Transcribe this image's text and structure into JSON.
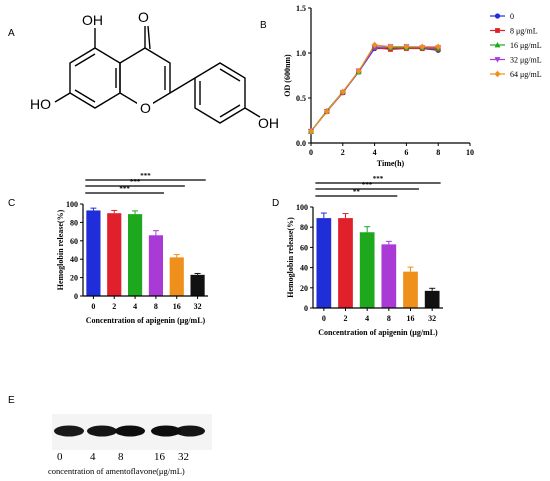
{
  "panel_labels": [
    "A",
    "B",
    "C",
    "D",
    "E"
  ],
  "molecule": {
    "atom_labels": [
      "OH",
      "O",
      "HO",
      "O",
      "OH"
    ]
  },
  "chart_data": [
    {
      "panel": "B",
      "type": "line",
      "xlabel": "Time(h)",
      "ylabel": "OD (600nm)",
      "xlim": [
        0,
        10
      ],
      "ylim": [
        0,
        1.5
      ],
      "xticks": [
        "0",
        "2",
        "4",
        "6",
        "8",
        "10"
      ],
      "yticks": [
        "0.0",
        "0.5",
        "1.0",
        "1.5"
      ],
      "x": [
        0,
        1,
        2,
        3,
        4,
        5,
        6,
        7,
        8
      ],
      "legend_position": "right",
      "series": [
        {
          "name": "0",
          "color": "#1f2ed8",
          "marker": "circle",
          "values": [
            0.13,
            0.35,
            0.56,
            0.79,
            1.05,
            1.05,
            1.06,
            1.05,
            1.03
          ]
        },
        {
          "name": "8 μg/mL",
          "color": "#e0202a",
          "marker": "square",
          "values": [
            0.13,
            0.35,
            0.56,
            0.8,
            1.06,
            1.04,
            1.05,
            1.05,
            1.04
          ]
        },
        {
          "name": "16 μg/mL",
          "color": "#1ea81e",
          "marker": "triangle-up",
          "values": [
            0.13,
            0.36,
            0.57,
            0.79,
            1.07,
            1.06,
            1.06,
            1.06,
            1.05
          ]
        },
        {
          "name": "32 μg/mL",
          "color": "#a93ad6",
          "marker": "triangle-down",
          "values": [
            0.13,
            0.35,
            0.56,
            0.8,
            1.06,
            1.07,
            1.07,
            1.06,
            1.06
          ]
        },
        {
          "name": "64 μg/mL",
          "color": "#f0901c",
          "marker": "diamond",
          "values": [
            0.13,
            0.35,
            0.57,
            0.8,
            1.09,
            1.07,
            1.07,
            1.07,
            1.07
          ]
        }
      ]
    },
    {
      "panel": "C",
      "type": "bar",
      "xlabel": "Concentration of apigenin (μg/mL)",
      "ylabel": "Hemoglobin release(%)",
      "ylim": [
        0,
        100
      ],
      "yticks": [
        "0",
        "20",
        "40",
        "60",
        "80",
        "100"
      ],
      "categories": [
        "0",
        "2",
        "4",
        "8",
        "16",
        "32"
      ],
      "values": [
        93,
        90,
        89,
        66,
        42,
        23
      ],
      "errors": [
        2.5,
        3,
        3.5,
        5,
        3,
        1.5
      ],
      "colors": [
        "#1f2ed8",
        "#e0202a",
        "#1ea81e",
        "#a93ad6",
        "#f0901c",
        "#111111"
      ],
      "significance": [
        {
          "from": "0",
          "to": "8",
          "label": "***"
        },
        {
          "from": "0",
          "to": "16",
          "label": "***"
        },
        {
          "from": "0",
          "to": "32",
          "label": "***"
        }
      ]
    },
    {
      "panel": "D",
      "type": "bar",
      "xlabel": "Concentration of apigenin (μg/mL)",
      "ylabel": "Hemoglobin release(%)",
      "ylim": [
        0,
        100
      ],
      "yticks": [
        "0",
        "20",
        "40",
        "60",
        "80",
        "100"
      ],
      "categories": [
        "0",
        "2",
        "4",
        "8",
        "16",
        "32"
      ],
      "values": [
        89,
        89,
        75,
        63,
        36,
        17
      ],
      "errors": [
        5,
        4.5,
        5.5,
        3,
        4.5,
        2.5
      ],
      "colors": [
        "#1f2ed8",
        "#e0202a",
        "#1ea81e",
        "#a93ad6",
        "#f0901c",
        "#111111"
      ],
      "significance": [
        {
          "from": "0",
          "to": "8",
          "label": "**"
        },
        {
          "from": "0",
          "to": "16",
          "label": "***"
        },
        {
          "from": "0",
          "to": "32",
          "label": "***"
        }
      ]
    }
  ],
  "blot": {
    "panel": "E",
    "lanes": [
      "0",
      "4",
      "8",
      "16",
      "32"
    ],
    "band_intensity": [
      0.95,
      0.97,
      1.0,
      1.0,
      0.97
    ],
    "xlabel": "concentration of amentoflavone(μg/mL)"
  }
}
